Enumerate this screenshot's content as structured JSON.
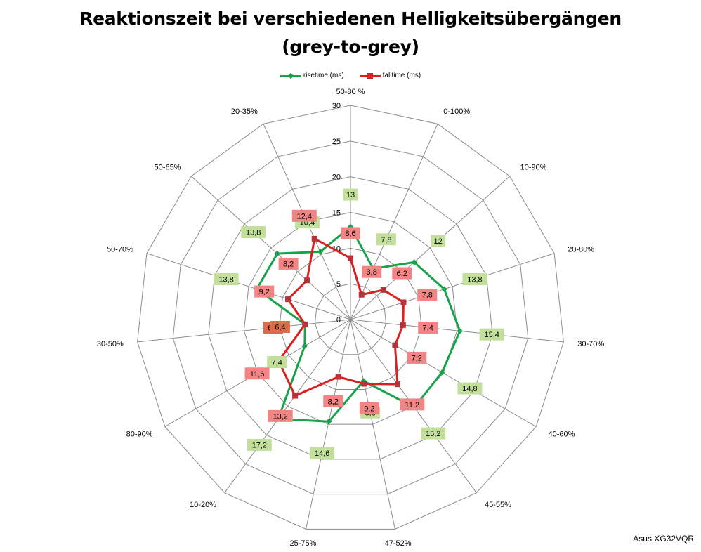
{
  "title_line1": "Reaktionszeit bei verschiedenen Helligkeitsübergängen",
  "title_line2": "(grey-to-grey)",
  "watermark": "Asus XG32VQR",
  "colors": {
    "rise": "#16a34a",
    "fall": "#dc1f1f",
    "rise_label_bg": "#c2df9c",
    "fall_label_bg": "#f28484",
    "overlap_label_bg": "#dd6b4b",
    "grid": "#8c8c8c"
  },
  "chart_data": {
    "type": "radar",
    "title": "Reaktionszeit bei verschiedenen Helligkeitsübergängen (grey-to-grey)",
    "categories": [
      "50-80 %",
      "0-100%",
      "10-90%",
      "20-80%",
      "30-70%",
      "40-60%",
      "45-55%",
      "47-52%",
      "25-75%",
      "10-20%",
      "80-90%",
      "30-50%",
      "50-70%",
      "50-65%",
      "20-35%"
    ],
    "radial_ticks": [
      "0",
      "5",
      "10",
      "15",
      "20",
      "25",
      "30"
    ],
    "rmax": 30,
    "series": [
      {
        "name": "risetime (ms)",
        "values": [
          13,
          7.8,
          12,
          13.8,
          15.4,
          14.8,
          15.2,
          8.8,
          14.6,
          17.2,
          7.4,
          6.4,
          13.8,
          13.8,
          10.4
        ],
        "labels": [
          "13",
          "7,8",
          "12",
          "13,8",
          "15,4",
          "14,8",
          "15,2",
          "8,8",
          "14,6",
          "17,2",
          "7,4",
          "6,4",
          "13,8",
          "13,8",
          "10,4"
        ]
      },
      {
        "name": "falltime (ms)",
        "values": [
          8.6,
          3.8,
          6.2,
          7.8,
          7.4,
          7.2,
          11.2,
          9.2,
          8.2,
          13.2,
          11.6,
          6.4,
          9.2,
          8.2,
          12.4
        ],
        "labels": [
          "8,6",
          "3,8",
          "6,2",
          "7,8",
          "7,4",
          "7,2",
          "11,2",
          "9,2",
          "8,2",
          "13,2",
          "11,6",
          "6,4",
          "9,2",
          "8,2",
          "12,4"
        ]
      }
    ],
    "legend": "top"
  }
}
